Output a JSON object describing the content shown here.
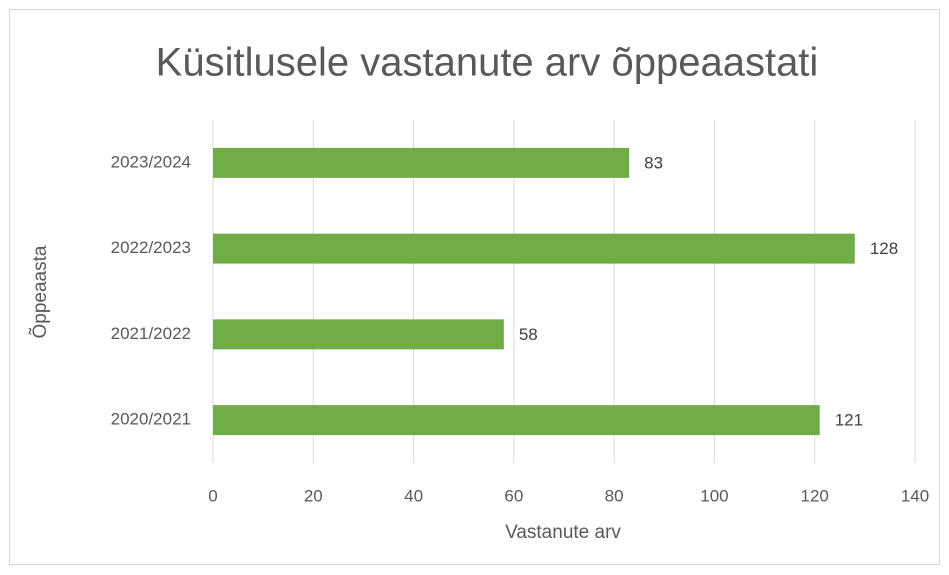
{
  "chart_data": {
    "type": "barh",
    "title": "Küsitlusele vastanute arv õppeaastati",
    "xlabel": "Vastanute arv",
    "ylabel": "Õppeaasta",
    "categories": [
      "2020/2021",
      "2021/2022",
      "2022/2023",
      "2023/2024"
    ],
    "values": [
      121,
      58,
      128,
      83
    ],
    "color": "#70ad47",
    "xlim": [
      0,
      140
    ],
    "xticks": [
      0,
      20,
      40,
      60,
      80,
      100,
      120,
      140
    ],
    "grid": true,
    "data_labels": true
  }
}
